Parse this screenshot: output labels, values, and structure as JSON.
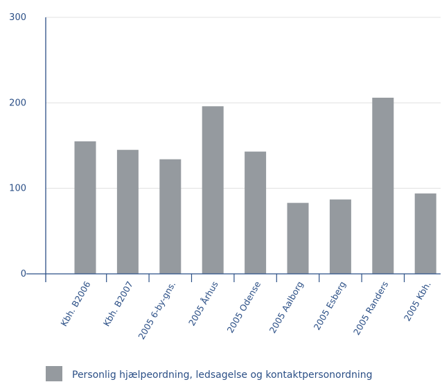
{
  "chart_data": {
    "type": "bar",
    "categories": [
      "Kbh. B2006",
      "Kbh. B2007",
      "2005 6-by-gns.",
      "2005 Århus",
      "2005 Odense",
      "2005 Aalborg",
      "2005 Esberg",
      "2005 Randers",
      "2005 Kbh."
    ],
    "series": [
      {
        "name": "Personlig hjælpeordning, ledsagelse og kontaktpersonordning",
        "values": [
          155,
          145,
          134,
          196,
          143,
          83,
          87,
          206,
          94
        ],
        "color": "#959a9f"
      }
    ],
    "yticks": [
      0,
      100,
      200,
      300
    ],
    "ylim": [
      0,
      300
    ],
    "grid": true,
    "grid_color": "#e0e0e0",
    "axis_color": "#2b4f86",
    "text_color": "#2b4f86",
    "legend_position": "bottom-left"
  }
}
